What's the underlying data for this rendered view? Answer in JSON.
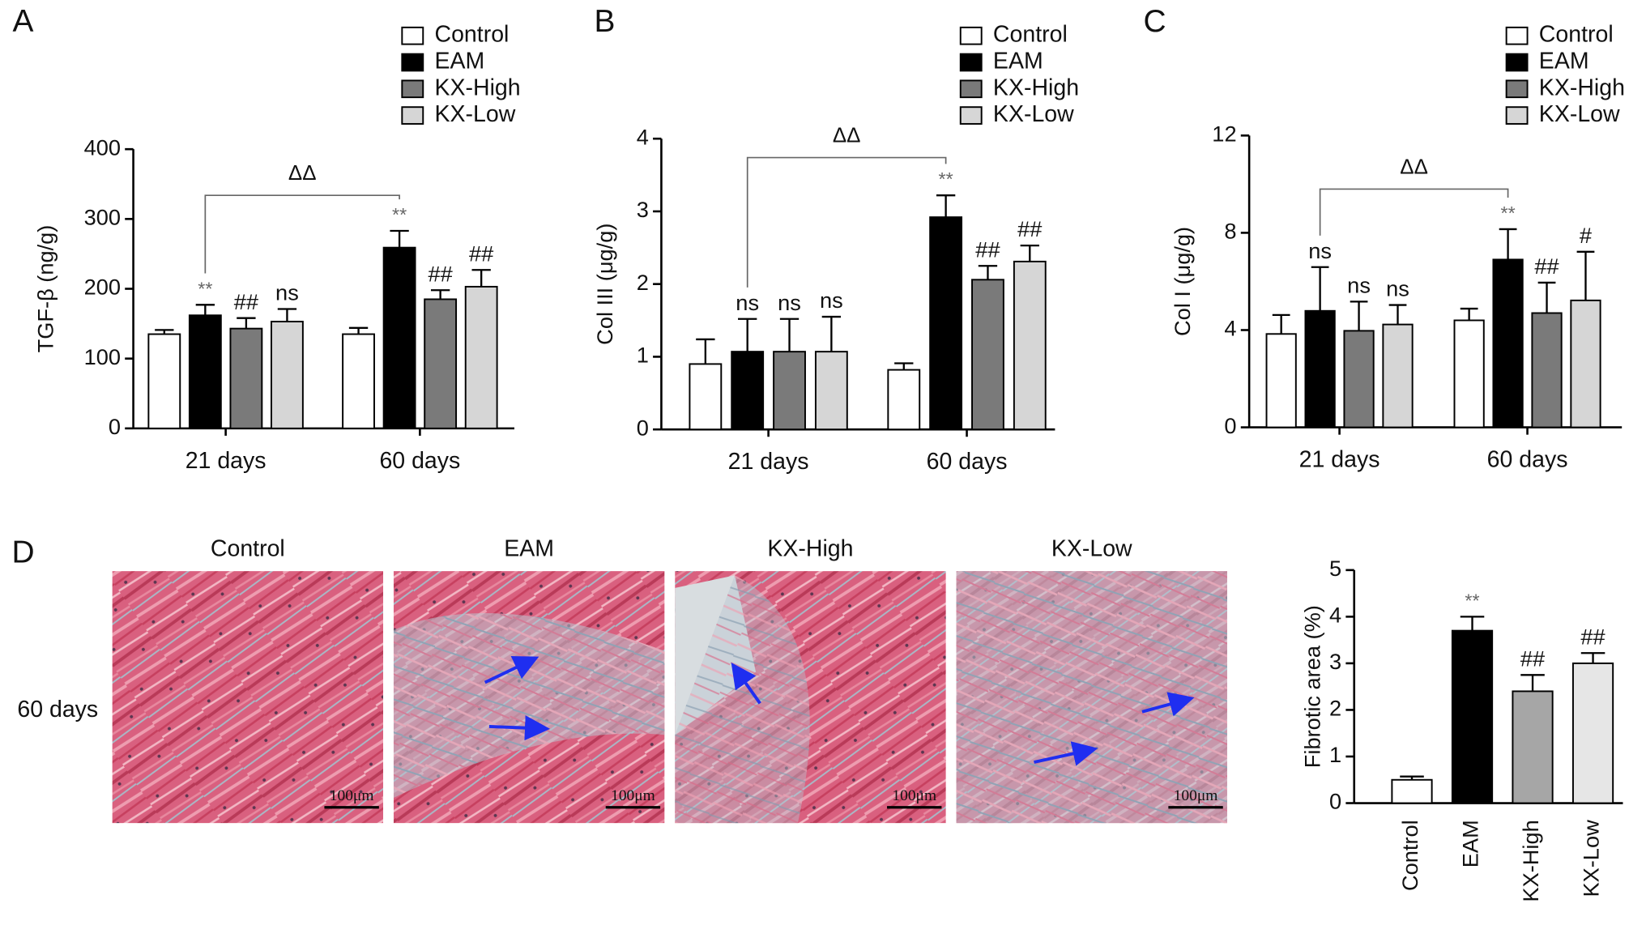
{
  "chart_data": [
    {
      "type": "bar",
      "panel": "A",
      "y_label": "TGF-β (ng/g)",
      "bracket_label": "ΔΔ",
      "categories": [
        "21 days",
        "60 days"
      ],
      "series": [
        {
          "name": "Control",
          "color": "#ffffff",
          "values": [
            135,
            135
          ],
          "errors": [
            6,
            9
          ],
          "annotations": [
            null,
            null
          ]
        },
        {
          "name": "EAM",
          "color": "#000000",
          "values": [
            162,
            259
          ],
          "errors": [
            15,
            24
          ],
          "annotations": [
            "**",
            "**"
          ]
        },
        {
          "name": "KX-High",
          "color": "#7a7a7a",
          "values": [
            143,
            185
          ],
          "errors": [
            15,
            13
          ],
          "annotations": [
            "##",
            "##"
          ]
        },
        {
          "name": "KX-Low",
          "color": "#d6d6d6",
          "values": [
            153,
            203
          ],
          "errors": [
            18,
            24
          ],
          "annotations": [
            "ns",
            "##"
          ]
        }
      ],
      "ylim": [
        0,
        400
      ],
      "yticks": [
        0,
        100,
        200,
        300,
        400
      ]
    },
    {
      "type": "bar",
      "panel": "B",
      "y_label": "Col III (μg/g)",
      "bracket_label": "ΔΔ",
      "categories": [
        "21 days",
        "60 days"
      ],
      "series": [
        {
          "name": "Control",
          "color": "#ffffff",
          "values": [
            0.9,
            0.82
          ],
          "errors": [
            0.34,
            0.09
          ],
          "annotations": [
            null,
            null
          ]
        },
        {
          "name": "EAM",
          "color": "#000000",
          "values": [
            1.07,
            2.92
          ],
          "errors": [
            0.45,
            0.3
          ],
          "annotations": [
            "ns",
            "**"
          ]
        },
        {
          "name": "KX-High",
          "color": "#7a7a7a",
          "values": [
            1.07,
            2.06
          ],
          "errors": [
            0.45,
            0.19
          ],
          "annotations": [
            "ns",
            "##"
          ]
        },
        {
          "name": "KX-Low",
          "color": "#d6d6d6",
          "values": [
            1.07,
            2.31
          ],
          "errors": [
            0.48,
            0.22
          ],
          "annotations": [
            "ns",
            "##"
          ]
        }
      ],
      "ylim": [
        0,
        4
      ],
      "yticks": [
        0,
        1,
        2,
        3,
        4
      ]
    },
    {
      "type": "bar",
      "panel": "C",
      "y_label": "Col I (μg/g)",
      "bracket_label": "ΔΔ",
      "categories": [
        "21 days",
        "60 days"
      ],
      "series": [
        {
          "name": "Control",
          "color": "#ffffff",
          "values": [
            3.84,
            4.4
          ],
          "errors": [
            0.78,
            0.48
          ],
          "annotations": [
            null,
            null
          ]
        },
        {
          "name": "EAM",
          "color": "#000000",
          "values": [
            4.79,
            6.9
          ],
          "errors": [
            1.8,
            1.25
          ],
          "annotations": [
            "ns",
            "**"
          ]
        },
        {
          "name": "KX-High",
          "color": "#7a7a7a",
          "values": [
            3.97,
            4.7
          ],
          "errors": [
            1.2,
            1.25
          ],
          "annotations": [
            "ns",
            "##"
          ]
        },
        {
          "name": "KX-Low",
          "color": "#d6d6d6",
          "values": [
            4.23,
            5.22
          ],
          "errors": [
            0.8,
            2.0
          ],
          "annotations": [
            "ns",
            "#"
          ]
        }
      ],
      "ylim": [
        0,
        12
      ],
      "yticks": [
        0,
        4,
        8,
        12
      ]
    },
    {
      "type": "bar",
      "y_label": "Fibrotic area (%)",
      "categories": [
        "Control",
        "EAM",
        "KX-High",
        "KX-Low"
      ],
      "values": [
        0.5,
        3.7,
        2.4,
        3.0
      ],
      "errors": [
        0.07,
        0.3,
        0.35,
        0.22
      ],
      "annotations": [
        null,
        "**",
        "##",
        "##"
      ],
      "colors": [
        "#ffffff",
        "#000000",
        "#a6a6a6",
        "#e6e6e6"
      ],
      "ylim": [
        0,
        5
      ],
      "yticks": [
        0,
        1,
        2,
        3,
        4,
        5
      ]
    }
  ],
  "histology": {
    "panel": "D",
    "row_label": "60 days",
    "panels": [
      {
        "title": "Control",
        "scale_bar": "100μm"
      },
      {
        "title": "EAM",
        "scale_bar": "100μm"
      },
      {
        "title": "KX-High",
        "scale_bar": "100μm"
      },
      {
        "title": "KX-Low",
        "scale_bar": "100μm"
      }
    ]
  }
}
